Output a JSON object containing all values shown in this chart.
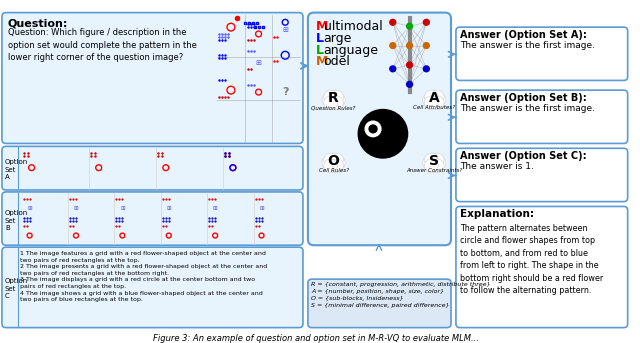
{
  "title": "Figure 3: An example of question and option set in M-R-VQ to evaluate MLM...",
  "bg_color": "#ffffff",
  "panel_border_color": "#5b9bd5",
  "panel_bg_color": "#e8f4fd",
  "question_title": "Question:",
  "question_text": "Question: Which figure / description in the\noption set would complete the pattern in the\nlower right corner of the question image?",
  "option_a_label": "Option\nSet\nA",
  "option_b_label": "Option\nSet\nB",
  "option_c_label": "Option\nSet\nC",
  "mllm_title_M": "M",
  "mllm_title_u": "ultimodal",
  "mllm_title_L": "L",
  "mllm_title_a": "arge",
  "mllm_title_La": "L",
  "mllm_title_anguage": "anguage",
  "mllm_title_Mo": "M",
  "mllm_title_odel": "odel",
  "answer_a_title": "Answer (Option Set A):",
  "answer_a_text": "The answer is the first image.",
  "answer_b_title": "Answer (Option Set B):",
  "answer_b_text": "The answer is the first image.",
  "answer_c_title": "Answer (Option Set C):",
  "answer_c_text": "The answer is 1.",
  "explanation_title": "Explanation:",
  "explanation_text": "The pattern alternates between\ncircle and flower shapes from top\nto bottom, and from red to blue\nfrom left to right. The shape in the\nbottom right should be a red flower\nto follow the alternating pattern.",
  "r_label": "R",
  "r_sublabel": "Question Rules?",
  "a_label": "A",
  "a_sublabel": "Cell Attributes?",
  "o_label": "O",
  "o_sublabel": "Cell Rules?",
  "s_label": "S",
  "s_sublabel": "Answer Constraints?",
  "formula_box_text": "R = {constant, progression, arithmetic, distribute three}\nA = {number, position, shape, size, color}\nO = {sub-blocks, Insideness}\nS = {minimal difference, paired difference}",
  "caption": "Figure 3: An example of question and option set in M-R-VQ to evaluate MLM..."
}
